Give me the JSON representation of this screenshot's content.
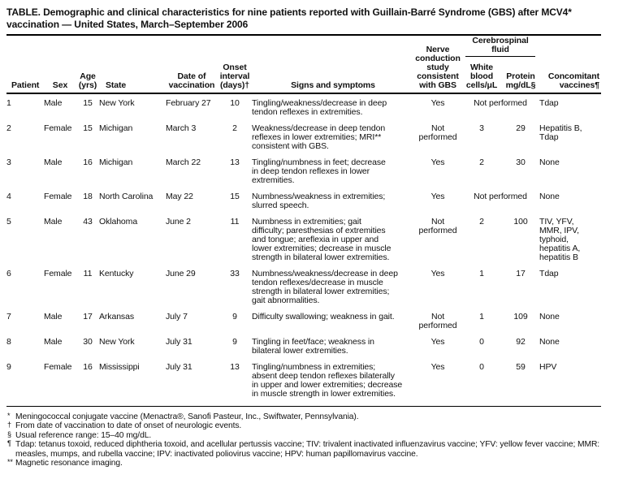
{
  "title": "TABLE. Demographic and clinical characteristics for nine patients reported with Guillain-Barré Syndrome (GBS) after MCV4*\nvaccination — United States, March–September 2006",
  "table": {
    "headers": {
      "patient": "Patient",
      "sex": "Sex",
      "age": "Age\n(yrs)",
      "state": "State",
      "date": "Date of\nvaccination",
      "onset": "Onset\ninterval\n(days)†",
      "signs": "Signs and symptoms",
      "nerve": "Nerve\nconduction\nstudy\nconsistent\nwith GBS",
      "csf_group": "Cerebrospinal\nfluid",
      "wbc": "White\nblood\ncells/μL",
      "protein": "Protein\nmg/dL§",
      "vaccines": "Concomitant\nvaccines¶"
    },
    "rows": [
      {
        "patient": "1",
        "sex": "Male",
        "age": "15",
        "state": "New York",
        "date": "February 27",
        "onset": "10",
        "signs": "Tingling/weakness/decrease in deep\ntendon reflexes in extremities.",
        "nerve": "Yes",
        "csf": "Not performed",
        "vaccines": "Tdap"
      },
      {
        "patient": "2",
        "sex": "Female",
        "age": "15",
        "state": "Michigan",
        "date": "March 3",
        "onset": "2",
        "signs": "Weakness/decrease in deep tendon\nreflexes in lower extremities; MRI**\nconsistent with GBS.",
        "nerve": "Not performed",
        "wbc": "3",
        "protein": "29",
        "vaccines": "Hepatitis B,\nTdap"
      },
      {
        "patient": "3",
        "sex": "Male",
        "age": "16",
        "state": "Michigan",
        "date": "March 22",
        "onset": "13",
        "signs": "Tingling/numbness in feet; decrease\nin deep tendon reflexes in lower\nextremities.",
        "nerve": "Yes",
        "wbc": "2",
        "protein": "30",
        "vaccines": "None"
      },
      {
        "patient": "4",
        "sex": "Female",
        "age": "18",
        "state": "North Carolina",
        "date": "May 22",
        "onset": "15",
        "signs": "Numbness/weakness in extremities;\nslurred speech.",
        "nerve": "Yes",
        "csf": "Not performed",
        "vaccines": "None"
      },
      {
        "patient": "5",
        "sex": "Male",
        "age": "43",
        "state": "Oklahoma",
        "date": "June 2",
        "onset": "11",
        "signs": "Numbness in extremities; gait\ndifficulty; paresthesias of extremities\nand tongue; areflexia in upper and\nlower extremities; decrease in muscle\nstrength in bilateral lower extremities.",
        "nerve": "Not performed",
        "wbc": "2",
        "protein": "100",
        "vaccines": "TIV, YFV,\nMMR, IPV,\ntyphoid,\nhepatitis A,\nhepatitis B"
      },
      {
        "patient": "6",
        "sex": "Female",
        "age": "11",
        "state": "Kentucky",
        "date": "June 29",
        "onset": "33",
        "signs": "Numbness/weakness/decrease in deep\ntendon reflexes/decrease in muscle\nstrength in bilateral lower extremities;\ngait abnormalities.",
        "nerve": "Yes",
        "wbc": "1",
        "protein": "17",
        "vaccines": "Tdap"
      },
      {
        "patient": "7",
        "sex": "Male",
        "age": "17",
        "state": "Arkansas",
        "date": "July 7",
        "onset": "9",
        "signs": "Difficulty swallowing; weakness in gait.",
        "nerve": "Not performed",
        "wbc": "1",
        "protein": "109",
        "vaccines": "None"
      },
      {
        "patient": "8",
        "sex": "Male",
        "age": "30",
        "state": "New York",
        "date": "July 31",
        "onset": "9",
        "signs": "Tingling in feet/face; weakness in\nbilateral lower extremities.",
        "nerve": "Yes",
        "wbc": "0",
        "protein": "92",
        "vaccines": "None"
      },
      {
        "patient": "9",
        "sex": "Female",
        "age": "16",
        "state": "Mississippi",
        "date": "July 31",
        "onset": "13",
        "signs": "Tingling/numbness in extremities;\nabsent deep tendon reflexes bilaterally\nin upper and lower extremities; decrease\nin muscle strength in lower extremities.",
        "nerve": "Yes",
        "wbc": "0",
        "protein": "59",
        "vaccines": "HPV"
      }
    ]
  },
  "footnotes": [
    {
      "marker": "*",
      "text": "Meningococcal conjugate vaccine (Menactra®, Sanofi Pasteur, Inc., Swiftwater, Pennsylvania)."
    },
    {
      "marker": "†",
      "text": "From date of vaccination to date of onset of neurologic events."
    },
    {
      "marker": "§",
      "text": "Usual reference range: 15–40 mg/dL."
    },
    {
      "marker": "¶",
      "text": "Tdap: tetanus toxoid, reduced diphtheria toxoid, and acellular pertussis vaccine; TIV: trivalent inactivated influenzavirus vaccine; YFV: yellow fever vaccine; MMR: measles, mumps, and rubella vaccine; IPV: inactivated poliovirus vaccine; HPV: human papillomavirus vaccine."
    },
    {
      "marker": "**",
      "text": "Magnetic resonance imaging."
    }
  ]
}
